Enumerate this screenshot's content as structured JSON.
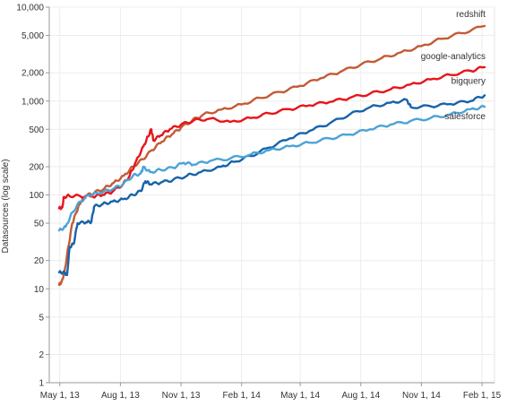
{
  "chart_data": {
    "type": "line",
    "title": "",
    "xlabel": "",
    "ylabel": "Datasources (log scale)",
    "y_scale": "log",
    "ylim": [
      1,
      10000
    ],
    "xlim": [
      "2013-04-15",
      "2015-02-20"
    ],
    "grid": true,
    "y_ticks": [
      {
        "value": 1,
        "label": "1"
      },
      {
        "value": 2,
        "label": "2"
      },
      {
        "value": 5,
        "label": "5"
      },
      {
        "value": 10,
        "label": "10"
      },
      {
        "value": 20,
        "label": "20"
      },
      {
        "value": 50,
        "label": "50"
      },
      {
        "value": 100,
        "label": "100"
      },
      {
        "value": 200,
        "label": "200"
      },
      {
        "value": 500,
        "label": "500"
      },
      {
        "value": 1000,
        "label": "1,000"
      },
      {
        "value": 2000,
        "label": "2,000"
      },
      {
        "value": 5000,
        "label": "5,000"
      },
      {
        "value": 10000,
        "label": "10,000"
      }
    ],
    "x_ticks": [
      {
        "date": "2013-05-01",
        "label": "May 1, 13"
      },
      {
        "date": "2013-08-01",
        "label": "Aug 1, 13"
      },
      {
        "date": "2013-11-01",
        "label": "Nov 1, 13"
      },
      {
        "date": "2014-02-01",
        "label": "Feb 1, 14"
      },
      {
        "date": "2014-05-01",
        "label": "May 1, 14"
      },
      {
        "date": "2014-08-01",
        "label": "Aug 1, 14"
      },
      {
        "date": "2014-11-01",
        "label": "Nov 1, 14"
      },
      {
        "date": "2015-02-01",
        "label": "Feb 1, 15"
      }
    ],
    "series": [
      {
        "name": "redshift",
        "color": "#c45a34",
        "points": [
          [
            "2013-04-30",
            11
          ],
          [
            "2013-05-04",
            12
          ],
          [
            "2013-05-08",
            15
          ],
          [
            "2013-05-14",
            28
          ],
          [
            "2013-05-20",
            50
          ],
          [
            "2013-05-26",
            65
          ],
          [
            "2013-06-02",
            85
          ],
          [
            "2013-06-10",
            98
          ],
          [
            "2013-06-22",
            105
          ],
          [
            "2013-07-08",
            118
          ],
          [
            "2013-07-22",
            135
          ],
          [
            "2013-08-06",
            160
          ],
          [
            "2013-08-20",
            200
          ],
          [
            "2013-09-04",
            240
          ],
          [
            "2013-09-18",
            300
          ],
          [
            "2013-10-03",
            370
          ],
          [
            "2013-10-18",
            440
          ],
          [
            "2013-11-01",
            520
          ],
          [
            "2013-11-18",
            620
          ],
          [
            "2013-12-05",
            720
          ],
          [
            "2014-01-01",
            810
          ],
          [
            "2014-02-01",
            920
          ],
          [
            "2014-03-01",
            1080
          ],
          [
            "2014-04-01",
            1250
          ],
          [
            "2014-05-01",
            1450
          ],
          [
            "2014-06-01",
            1750
          ],
          [
            "2014-07-01",
            2050
          ],
          [
            "2014-08-01",
            2450
          ],
          [
            "2014-09-01",
            2850
          ],
          [
            "2014-10-01",
            3300
          ],
          [
            "2014-11-01",
            3850
          ],
          [
            "2014-12-01",
            4600
          ],
          [
            "2015-01-01",
            5300
          ],
          [
            "2015-02-05",
            6300
          ]
        ]
      },
      {
        "name": "google-analytics",
        "color": "#e8141c",
        "points": [
          [
            "2013-04-30",
            72
          ],
          [
            "2013-05-05",
            74
          ],
          [
            "2013-05-07",
            95
          ],
          [
            "2013-05-15",
            98
          ],
          [
            "2013-06-01",
            97
          ],
          [
            "2013-06-20",
            96
          ],
          [
            "2013-07-05",
            100
          ],
          [
            "2013-07-20",
            108
          ],
          [
            "2013-08-05",
            130
          ],
          [
            "2013-08-15",
            160
          ],
          [
            "2013-08-25",
            230
          ],
          [
            "2013-09-05",
            330
          ],
          [
            "2013-09-12",
            420
          ],
          [
            "2013-09-17",
            500
          ],
          [
            "2013-09-20",
            380
          ],
          [
            "2013-10-01",
            430
          ],
          [
            "2013-10-15",
            500
          ],
          [
            "2013-11-01",
            560
          ],
          [
            "2013-11-20",
            620
          ],
          [
            "2013-12-15",
            650
          ],
          [
            "2014-01-15",
            600
          ],
          [
            "2014-02-15",
            660
          ],
          [
            "2014-03-15",
            740
          ],
          [
            "2014-04-15",
            820
          ],
          [
            "2014-05-15",
            900
          ],
          [
            "2014-06-15",
            980
          ],
          [
            "2014-07-15",
            1080
          ],
          [
            "2014-08-15",
            1200
          ],
          [
            "2014-09-15",
            1330
          ],
          [
            "2014-10-15",
            1500
          ],
          [
            "2014-11-15",
            1700
          ],
          [
            "2014-12-15",
            1900
          ],
          [
            "2015-01-15",
            2100
          ],
          [
            "2015-02-05",
            2300
          ]
        ]
      },
      {
        "name": "bigquery",
        "color": "#1763ab",
        "points": [
          [
            "2013-04-30",
            15
          ],
          [
            "2013-05-08",
            15
          ],
          [
            "2013-05-12",
            14
          ],
          [
            "2013-05-16",
            28
          ],
          [
            "2013-05-22",
            30
          ],
          [
            "2013-05-28",
            50
          ],
          [
            "2013-06-10",
            51
          ],
          [
            "2013-06-18",
            52
          ],
          [
            "2013-06-22",
            75
          ],
          [
            "2013-07-05",
            80
          ],
          [
            "2013-07-20",
            85
          ],
          [
            "2013-08-05",
            90
          ],
          [
            "2013-08-20",
            100
          ],
          [
            "2013-09-01",
            110
          ],
          [
            "2013-09-08",
            140
          ],
          [
            "2013-09-15",
            130
          ],
          [
            "2013-10-01",
            135
          ],
          [
            "2013-10-20",
            145
          ],
          [
            "2013-11-10",
            160
          ],
          [
            "2013-12-01",
            175
          ],
          [
            "2014-01-01",
            200
          ],
          [
            "2014-01-20",
            225
          ],
          [
            "2014-02-15",
            260
          ],
          [
            "2014-03-15",
            320
          ],
          [
            "2014-04-15",
            400
          ],
          [
            "2014-05-15",
            480
          ],
          [
            "2014-06-15",
            580
          ],
          [
            "2014-07-15",
            720
          ],
          [
            "2014-08-15",
            860
          ],
          [
            "2014-09-15",
            960
          ],
          [
            "2014-10-10",
            1030
          ],
          [
            "2014-10-16",
            860
          ],
          [
            "2014-11-15",
            880
          ],
          [
            "2014-12-15",
            930
          ],
          [
            "2015-01-15",
            1000
          ],
          [
            "2015-02-05",
            1150
          ]
        ]
      },
      {
        "name": "salesforce",
        "color": "#4ba3d6",
        "points": [
          [
            "2013-04-30",
            42
          ],
          [
            "2013-05-10",
            46
          ],
          [
            "2013-05-20",
            65
          ],
          [
            "2013-06-01",
            85
          ],
          [
            "2013-06-15",
            100
          ],
          [
            "2013-07-01",
            105
          ],
          [
            "2013-07-20",
            115
          ],
          [
            "2013-08-05",
            130
          ],
          [
            "2013-08-20",
            160
          ],
          [
            "2013-09-01",
            170
          ],
          [
            "2013-09-05",
            200
          ],
          [
            "2013-09-15",
            175
          ],
          [
            "2013-10-01",
            185
          ],
          [
            "2013-10-20",
            195
          ],
          [
            "2013-11-05",
            220
          ],
          [
            "2013-11-20",
            210
          ],
          [
            "2013-12-15",
            230
          ],
          [
            "2014-01-15",
            245
          ],
          [
            "2014-02-15",
            270
          ],
          [
            "2014-03-15",
            300
          ],
          [
            "2014-04-15",
            330
          ],
          [
            "2014-05-15",
            360
          ],
          [
            "2014-06-15",
            400
          ],
          [
            "2014-07-15",
            440
          ],
          [
            "2014-08-15",
            500
          ],
          [
            "2014-09-15",
            560
          ],
          [
            "2014-10-15",
            610
          ],
          [
            "2014-11-15",
            660
          ],
          [
            "2014-12-15",
            720
          ],
          [
            "2015-01-15",
            820
          ],
          [
            "2015-02-05",
            870
          ]
        ]
      }
    ]
  }
}
